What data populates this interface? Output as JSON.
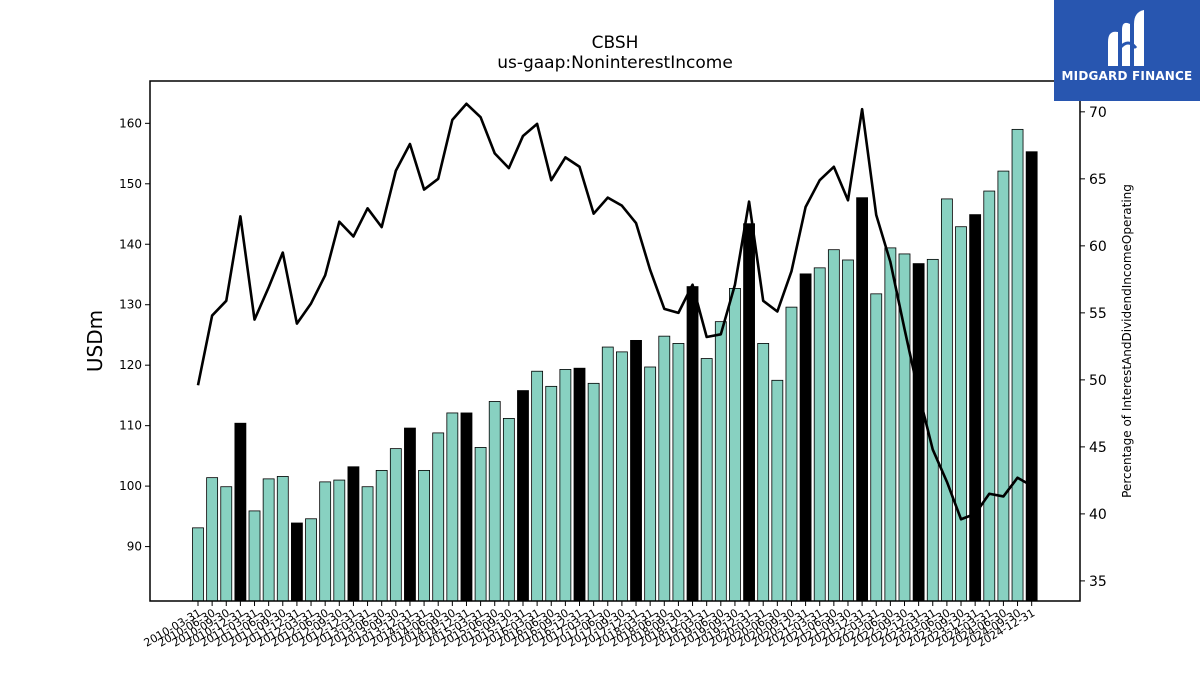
{
  "chart_data": {
    "type": "bar",
    "title": "CBSH",
    "subtitle": "us-gaap:NoninterestIncome",
    "ylabel": "USDm",
    "y2label": "Percentage of InterestAndDividendIncomeOperating",
    "ylim": [
      81,
      167
    ],
    "y2lim": [
      33.5,
      72.3
    ],
    "yticks": [
      90,
      100,
      110,
      120,
      130,
      140,
      150,
      160
    ],
    "y2ticks": [
      35,
      40,
      45,
      50,
      55,
      60,
      65,
      70
    ],
    "colors": {
      "quarter_bar": "#88d1c1",
      "annual_bar": "#000000",
      "line": "#000000"
    },
    "categories": [
      "2010-03-31",
      "2010-06-30",
      "2010-09-30",
      "2010-12-31",
      "2011-03-31",
      "2011-06-30",
      "2011-09-30",
      "2011-12-31",
      "2012-03-31",
      "2012-06-30",
      "2012-09-30",
      "2012-12-31",
      "2013-03-31",
      "2013-06-30",
      "2013-09-30",
      "2013-12-31",
      "2014-03-31",
      "2014-06-30",
      "2014-09-30",
      "2014-12-31",
      "2015-03-31",
      "2015-06-30",
      "2015-09-30",
      "2015-12-31",
      "2016-03-31",
      "2016-06-30",
      "2016-09-30",
      "2016-12-31",
      "2017-03-31",
      "2017-06-30",
      "2017-09-30",
      "2017-12-31",
      "2018-03-31",
      "2018-06-30",
      "2018-09-30",
      "2018-12-31",
      "2019-03-31",
      "2019-06-30",
      "2019-09-30",
      "2019-12-31",
      "2020-03-31",
      "2020-06-30",
      "2020-09-30",
      "2020-12-31",
      "2021-03-31",
      "2021-06-30",
      "2021-09-30",
      "2021-12-31",
      "2022-03-31",
      "2022-06-30",
      "2022-09-30",
      "2022-12-31",
      "2023-03-31",
      "2023-06-30",
      "2023-09-30",
      "2023-12-31",
      "2024-03-31",
      "2024-06-30",
      "2024-09-30",
      "2024-12-31"
    ],
    "series": [
      {
        "axis": "left",
        "values": [
          93.1,
          101.4,
          99.9,
          110.4,
          95.9,
          101.2,
          101.6,
          93.9,
          94.6,
          100.7,
          101.0,
          103.2,
          99.9,
          102.6,
          106.2,
          109.6,
          102.6,
          108.8,
          112.1,
          112.1,
          106.4,
          114.0,
          111.2,
          115.8,
          119.0,
          116.5,
          119.3,
          119.5,
          117.0,
          123.0,
          122.2,
          124.1,
          119.7,
          124.8,
          123.6,
          133.0,
          121.1,
          127.2,
          132.7,
          143.4,
          123.6,
          117.5,
          129.6,
          135.1,
          136.1,
          139.1,
          137.4,
          147.7,
          131.8,
          139.4,
          138.4,
          136.8,
          137.5,
          147.5,
          142.9,
          144.9,
          148.8,
          152.1,
          159.0,
          155.3
        ]
      },
      {
        "axis": "right",
        "type": "line",
        "values": [
          49.6,
          54.8,
          55.9,
          62.2,
          54.5,
          56.9,
          59.5,
          54.2,
          55.7,
          57.8,
          61.8,
          60.7,
          62.8,
          61.4,
          65.6,
          67.6,
          64.2,
          65.0,
          69.4,
          70.6,
          69.6,
          66.9,
          65.8,
          68.2,
          69.1,
          64.9,
          66.6,
          65.9,
          62.4,
          63.6,
          63.0,
          61.7,
          58.2,
          55.3,
          55.0,
          57.1,
          53.2,
          53.4,
          57.1,
          63.3,
          55.9,
          55.1,
          58.1,
          62.9,
          64.9,
          65.9,
          63.4,
          70.2,
          62.3,
          58.8,
          53.8,
          49.0,
          44.8,
          42.4,
          39.6,
          40.0,
          41.5,
          41.3,
          42.7,
          42.1
        ]
      }
    ]
  },
  "logo": {
    "text": "MIDGARD FINANCE"
  }
}
